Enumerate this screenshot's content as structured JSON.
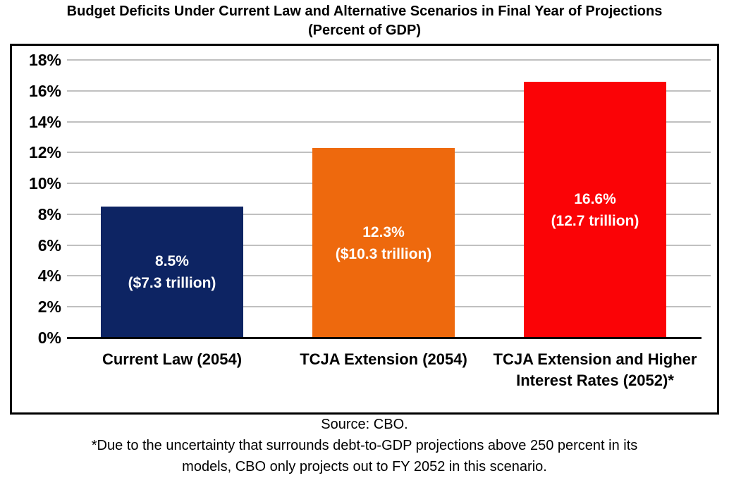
{
  "title": {
    "line1": "Budget Deficits Under Current Law and Alternative Scenarios in Final Year of Projections",
    "line2": "(Percent of GDP)"
  },
  "chart_data": {
    "type": "bar",
    "title": "Budget Deficits Under Current Law and Alternative Scenarios in Final Year of Projections",
    "subtitle": "(Percent of GDP)",
    "categories": [
      "Current Law (2054)",
      "TCJA Extension (2054)",
      "TCJA Extension and Higher Interest Rates (2052)*"
    ],
    "category_lines": [
      [
        "Current Law (2054)"
      ],
      [
        "TCJA Extension (2054)"
      ],
      [
        "TCJA Extension and Higher",
        "Interest Rates (2052)*"
      ]
    ],
    "values": [
      8.5,
      12.3,
      16.6
    ],
    "bar_labels": [
      {
        "pct": "8.5%",
        "amount": "($7.3 trillion)"
      },
      {
        "pct": "12.3%",
        "amount": "($10.3 trillion)"
      },
      {
        "pct": "16.6%",
        "amount": "(12.7 trillion)"
      }
    ],
    "bar_colors": [
      "#0D2463",
      "#EE690D",
      "#FB0306"
    ],
    "y_ticks": [
      "0%",
      "2%",
      "4%",
      "6%",
      "8%",
      "10%",
      "12%",
      "14%",
      "16%",
      "18%"
    ],
    "ylim": [
      0,
      18
    ],
    "xlabel": "",
    "ylabel": "",
    "grid": true,
    "gridline_color": "#C0C0C0",
    "axis_line_color": "#000000",
    "legend": "none"
  },
  "footer": {
    "source": "Source: CBO.",
    "footnote_lines": [
      "*Due to the uncertainty that surrounds debt-to-GDP projections above 250 percent in its",
      "models, CBO only projects out to FY 2052 in this scenario."
    ]
  }
}
